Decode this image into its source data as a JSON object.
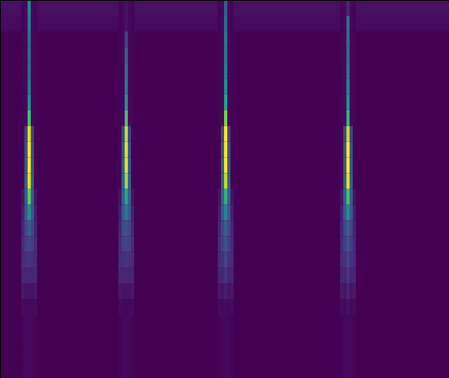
{
  "chart_data": {
    "type": "heatmap",
    "color": "viridis",
    "tick_labels": false,
    "xlim": [
      0,
      569
    ],
    "ylim": [
      480,
      0
    ],
    "zlim": [
      0,
      1
    ],
    "x_edges": [
      0,
      27,
      31,
      35,
      39,
      43,
      47,
      150,
      154,
      158,
      162,
      166,
      170,
      276,
      280,
      284,
      288,
      292,
      296,
      431,
      435,
      439,
      443,
      447,
      451,
      569
    ],
    "y_edges": [
      0,
      20,
      40,
      60,
      80,
      100,
      120,
      140,
      160,
      180,
      200,
      220,
      240,
      260,
      280,
      300,
      320,
      340,
      360,
      380,
      400,
      420,
      440,
      460,
      480
    ],
    "cells": [
      [
        0.04,
        0.01,
        0.02,
        0.45,
        0.02,
        0.01,
        0.04,
        0.01,
        0.02,
        0.05,
        0.02,
        0.01,
        0.04,
        0.01,
        0.02,
        0.3,
        0.02,
        0.01,
        0.04,
        0.01,
        0.02,
        0.1,
        0.02,
        0.01,
        0.04
      ],
      [
        0.03,
        0.01,
        0.02,
        0.4,
        0.02,
        0.01,
        0.03,
        0.01,
        0.02,
        0.05,
        0.02,
        0.01,
        0.03,
        0.01,
        0.02,
        0.35,
        0.02,
        0.01,
        0.03,
        0.01,
        0.02,
        0.35,
        0.02,
        0.01,
        0.03
      ],
      [
        0,
        0.01,
        0.02,
        0.35,
        0.02,
        0.01,
        0,
        0.01,
        0.02,
        0.2,
        0.02,
        0.01,
        0,
        0.01,
        0.02,
        0.4,
        0.02,
        0.01,
        0,
        0.01,
        0.02,
        0.35,
        0.02,
        0.01,
        0
      ],
      [
        0,
        0.01,
        0.02,
        0.35,
        0.02,
        0.01,
        0,
        0.01,
        0.02,
        0.3,
        0.02,
        0.01,
        0,
        0.01,
        0.02,
        0.4,
        0.02,
        0.01,
        0,
        0.01,
        0.02,
        0.35,
        0.02,
        0.01,
        0
      ],
      [
        0,
        0.01,
        0.02,
        0.35,
        0.02,
        0.01,
        0,
        0.01,
        0.02,
        0.35,
        0.02,
        0.01,
        0,
        0.01,
        0.02,
        0.45,
        0.02,
        0.01,
        0,
        0.01,
        0.02,
        0.4,
        0.02,
        0.01,
        0
      ],
      [
        0,
        0.01,
        0.02,
        0.4,
        0.02,
        0.01,
        0,
        0.01,
        0.02,
        0.4,
        0.02,
        0.01,
        0,
        0.01,
        0.02,
        0.5,
        0.02,
        0.01,
        0,
        0.01,
        0.02,
        0.45,
        0.02,
        0.01,
        0
      ],
      [
        0,
        0.01,
        0.02,
        0.5,
        0.02,
        0.01,
        0,
        0.01,
        0.02,
        0.5,
        0.02,
        0.01,
        0,
        0.01,
        0.02,
        0.6,
        0.02,
        0.01,
        0,
        0.01,
        0.02,
        0.5,
        0.02,
        0.01,
        0
      ],
      [
        0,
        0.01,
        0.02,
        0.7,
        0.02,
        0.01,
        0,
        0.01,
        0.02,
        0.7,
        0.02,
        0.01,
        0,
        0.01,
        0.02,
        0.8,
        0.02,
        0.01,
        0,
        0.01,
        0.02,
        0.65,
        0.02,
        0.01,
        0
      ],
      [
        0,
        0.01,
        0.2,
        0.95,
        0.2,
        0.01,
        0,
        0.01,
        0.2,
        0.9,
        0.2,
        0.01,
        0,
        0.01,
        0.2,
        1,
        0.2,
        0.01,
        0,
        0.01,
        0.2,
        0.9,
        0.2,
        0.01,
        0
      ],
      [
        0,
        0.01,
        0.25,
        1,
        0.25,
        0.01,
        0,
        0.01,
        0.25,
        0.95,
        0.25,
        0.01,
        0,
        0.01,
        0.25,
        1,
        0.25,
        0.01,
        0,
        0.01,
        0.25,
        1,
        0.25,
        0.01,
        0
      ],
      [
        0,
        0.01,
        0.28,
        1,
        0.28,
        0.01,
        0,
        0.01,
        0.28,
        0.95,
        0.28,
        0.01,
        0,
        0.01,
        0.28,
        1,
        0.28,
        0.01,
        0,
        0.01,
        0.28,
        1,
        0.28,
        0.01,
        0
      ],
      [
        0,
        0.01,
        0.3,
        0.95,
        0.3,
        0.01,
        0,
        0.01,
        0.3,
        0.85,
        0.3,
        0.01,
        0,
        0.01,
        0.3,
        0.9,
        0.3,
        0.01,
        0,
        0.01,
        0.3,
        0.95,
        0.3,
        0.01,
        0
      ],
      [
        0,
        0.05,
        0.3,
        0.75,
        0.3,
        0.05,
        0,
        0.05,
        0.3,
        0.6,
        0.3,
        0.05,
        0,
        0.05,
        0.3,
        0.65,
        0.3,
        0.05,
        0,
        0.05,
        0.3,
        0.7,
        0.3,
        0.05,
        0
      ],
      [
        0,
        0.08,
        0.28,
        0.5,
        0.28,
        0.08,
        0,
        0.08,
        0.28,
        0.4,
        0.28,
        0.08,
        0,
        0.08,
        0.28,
        0.45,
        0.28,
        0.08,
        0,
        0.08,
        0.28,
        0.5,
        0.28,
        0.08,
        0
      ],
      [
        0,
        0.1,
        0.22,
        0.3,
        0.22,
        0.1,
        0,
        0.1,
        0.22,
        0.25,
        0.22,
        0.1,
        0,
        0.1,
        0.22,
        0.3,
        0.22,
        0.1,
        0,
        0.1,
        0.22,
        0.3,
        0.22,
        0.1,
        0
      ],
      [
        0,
        0.12,
        0.18,
        0.2,
        0.18,
        0.12,
        0,
        0.12,
        0.18,
        0.2,
        0.18,
        0.12,
        0,
        0.12,
        0.18,
        0.25,
        0.18,
        0.12,
        0,
        0.12,
        0.18,
        0.25,
        0.18,
        0.12,
        0
      ],
      [
        0,
        0.12,
        0.14,
        0.15,
        0.14,
        0.12,
        0,
        0.12,
        0.14,
        0.15,
        0.14,
        0.12,
        0,
        0.12,
        0.14,
        0.2,
        0.14,
        0.12,
        0,
        0.12,
        0.14,
        0.2,
        0.14,
        0.12,
        0
      ],
      [
        0,
        0.1,
        0.1,
        0.1,
        0.1,
        0.1,
        0,
        0.1,
        0.1,
        0.1,
        0.1,
        0.1,
        0,
        0.1,
        0.1,
        0.15,
        0.1,
        0.1,
        0,
        0.1,
        0.1,
        0.15,
        0.1,
        0.1,
        0
      ],
      [
        0,
        0.06,
        0.05,
        0.05,
        0.05,
        0.06,
        0,
        0.06,
        0.05,
        0.05,
        0.05,
        0.06,
        0,
        0.06,
        0.05,
        0.08,
        0.05,
        0.06,
        0,
        0.06,
        0.05,
        0.1,
        0.05,
        0.06,
        0
      ],
      [
        0,
        0.03,
        0.02,
        0.02,
        0.02,
        0.03,
        0,
        0.03,
        0.02,
        0.02,
        0.02,
        0.03,
        0,
        0.03,
        0.02,
        0.03,
        0.02,
        0.03,
        0,
        0.03,
        0.02,
        0.04,
        0.02,
        0.03,
        0
      ],
      [
        0,
        0.01,
        0.02,
        0.02,
        0.02,
        0.01,
        0,
        0.01,
        0.02,
        0.02,
        0.02,
        0.01,
        0,
        0.01,
        0.02,
        0.02,
        0.02,
        0.01,
        0,
        0.01,
        0.02,
        0.02,
        0.02,
        0.01,
        0
      ],
      [
        0,
        0.01,
        0.02,
        0.02,
        0.02,
        0.01,
        0,
        0.01,
        0.02,
        0.02,
        0.02,
        0.01,
        0,
        0.01,
        0.02,
        0.02,
        0.02,
        0.01,
        0,
        0.01,
        0.02,
        0.02,
        0.02,
        0.01,
        0
      ],
      [
        0,
        0.01,
        0.02,
        0.02,
        0.02,
        0.01,
        0,
        0.01,
        0.02,
        0.02,
        0.02,
        0.01,
        0,
        0.01,
        0.02,
        0.02,
        0.02,
        0.01,
        0,
        0.01,
        0.02,
        0.02,
        0.02,
        0.01,
        0
      ],
      [
        0,
        0.01,
        0.02,
        0.02,
        0.02,
        0.01,
        0,
        0.01,
        0.02,
        0.02,
        0.02,
        0.01,
        0,
        0.01,
        0.02,
        0.02,
        0.02,
        0.01,
        0,
        0.01,
        0.02,
        0.02,
        0.02,
        0.01,
        0
      ]
    ]
  }
}
